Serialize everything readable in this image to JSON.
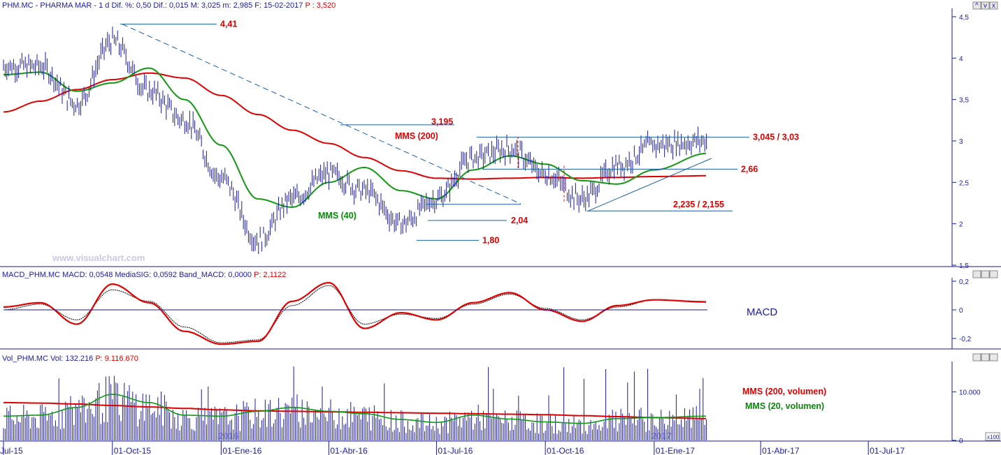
{
  "header": {
    "price_title": "PHM.MC - PHARMA MAR - 1 d Dif. %: 0,50 Dif.: 0,015 M: 3,025 m: 2,985 F: 15-02-2017",
    "price_last": "P : 3,520",
    "macd_title": "MACD_PHM.MC MACD: 0,0548 MediaSIG: 0,0592 Band_MACD: 0,0000",
    "macd_last": "P: 2,1122",
    "vol_title": "Vol_PHM.MC Vol: 132.216",
    "vol_last": "P: 9.116.670"
  },
  "watermark": "www.visualchart.com",
  "colors": {
    "price_bars": "#1a1aa6",
    "mms200": "#e00000",
    "mms40": "#119911",
    "macd": "#e00000",
    "signal": "#000000",
    "axis_text": "#1a1aa6",
    "annotation": "#e00000"
  },
  "window_buttons": [
    "^",
    "v",
    "x"
  ],
  "x_axis": {
    "labels": [
      "Jul-15",
      "01-Oct-15",
      "01-Ene-16",
      "01-Abr-16",
      "01-Jul-16",
      "01-Oct-16",
      "01-Ene-17",
      "01-Abr-17",
      "01-Jul-17"
    ],
    "year_marks": [
      "2016",
      "2017"
    ]
  },
  "chart_data": [
    {
      "type": "line",
      "title": "PHM.MC - PHARMA MAR",
      "y_ticks": [
        "4,5",
        "4",
        "3,5",
        "3",
        "2,5",
        "2",
        "1,5"
      ],
      "ylim": [
        1.5,
        4.55
      ],
      "x": [
        "2015-07-01",
        "2015-08-01",
        "2015-09-01",
        "2015-10-01",
        "2015-11-01",
        "2015-12-01",
        "2016-01-01",
        "2016-02-01",
        "2016-03-01",
        "2016-04-01",
        "2016-05-01",
        "2016-06-01",
        "2016-07-01",
        "2016-08-01",
        "2016-09-01",
        "2016-10-01",
        "2016-11-01",
        "2016-12-01",
        "2017-01-01",
        "2017-02-15"
      ],
      "series": [
        {
          "name": "PHM.MC",
          "values": [
            3.9,
            3.9,
            3.45,
            4.2,
            3.6,
            3.25,
            2.55,
            1.8,
            2.3,
            2.6,
            2.4,
            2.0,
            2.3,
            2.8,
            2.9,
            2.6,
            2.3,
            2.7,
            2.95,
            3.0
          ]
        },
        {
          "name": "MMS (200)",
          "values": [
            3.35,
            3.48,
            3.62,
            3.74,
            3.82,
            3.76,
            3.55,
            3.32,
            3.13,
            2.97,
            2.8,
            2.64,
            2.55,
            2.54,
            2.55,
            2.56,
            2.55,
            2.56,
            2.57,
            2.58
          ]
        },
        {
          "name": "MMS (40)",
          "values": [
            3.8,
            3.83,
            3.6,
            3.7,
            3.88,
            3.5,
            2.95,
            2.3,
            2.2,
            2.5,
            2.68,
            2.4,
            2.3,
            2.65,
            2.82,
            2.72,
            2.52,
            2.48,
            2.65,
            2.85
          ]
        }
      ],
      "annotations": [
        "4,41",
        "3,195",
        "MMS (200)",
        "2,04",
        "1,80",
        "MMS (40)",
        "3,045 / 3,03",
        "2,66",
        "2,235 / 2,155"
      ]
    },
    {
      "type": "line",
      "title": "MACD",
      "y_ticks": [
        "0,2",
        "0",
        "-0,2"
      ],
      "ylim": [
        -0.27,
        0.2
      ],
      "x": [
        "2015-07-01",
        "2015-08-01",
        "2015-09-01",
        "2015-10-01",
        "2015-11-01",
        "2015-12-01",
        "2016-01-01",
        "2016-02-01",
        "2016-03-01",
        "2016-04-01",
        "2016-05-01",
        "2016-06-01",
        "2016-07-01",
        "2016-08-01",
        "2016-09-01",
        "2016-10-01",
        "2016-11-01",
        "2016-12-01",
        "2017-01-01",
        "2017-02-15"
      ],
      "series": [
        {
          "name": "MACD",
          "values": [
            0.02,
            0.05,
            -0.1,
            0.18,
            0.05,
            -0.15,
            -0.24,
            -0.22,
            0.06,
            0.19,
            -0.13,
            -0.02,
            -0.07,
            0.05,
            0.12,
            0.0,
            -0.08,
            0.03,
            0.07,
            0.055
          ]
        },
        {
          "name": "MediaSIG",
          "values": [
            0.0,
            0.04,
            -0.07,
            0.14,
            0.06,
            -0.12,
            -0.23,
            -0.21,
            0.03,
            0.17,
            -0.1,
            -0.03,
            -0.06,
            0.04,
            0.11,
            0.01,
            -0.07,
            0.02,
            0.07,
            0.059
          ]
        }
      ]
    },
    {
      "type": "bar",
      "title": "Vol_PHM.MC",
      "y_ticks": [
        "10.000",
        "0"
      ],
      "y_unit": "x100",
      "ylim": [
        0,
        16000
      ],
      "x": [
        "2015-07-01",
        "2015-08-01",
        "2015-09-01",
        "2015-10-01",
        "2015-11-01",
        "2015-12-01",
        "2016-01-01",
        "2016-02-01",
        "2016-03-01",
        "2016-04-01",
        "2016-05-01",
        "2016-06-01",
        "2016-07-01",
        "2016-08-01",
        "2016-09-01",
        "2016-10-01",
        "2016-11-01",
        "2016-12-01",
        "2017-01-01",
        "2017-02-15"
      ],
      "series": [
        {
          "name": "MMS (200, volumen)",
          "values": [
            7800,
            7700,
            7500,
            7200,
            6900,
            6600,
            6300,
            6100,
            6000,
            5900,
            5800,
            5700,
            5600,
            5500,
            5400,
            5300,
            5100,
            4900,
            4700,
            4500
          ]
        },
        {
          "name": "MMS (20, volumen)",
          "values": [
            5000,
            5200,
            6800,
            9500,
            7800,
            5200,
            5000,
            6000,
            6800,
            6000,
            5500,
            4300,
            3700,
            5200,
            4400,
            3800,
            3500,
            4500,
            4700,
            5000
          ]
        }
      ]
    }
  ]
}
